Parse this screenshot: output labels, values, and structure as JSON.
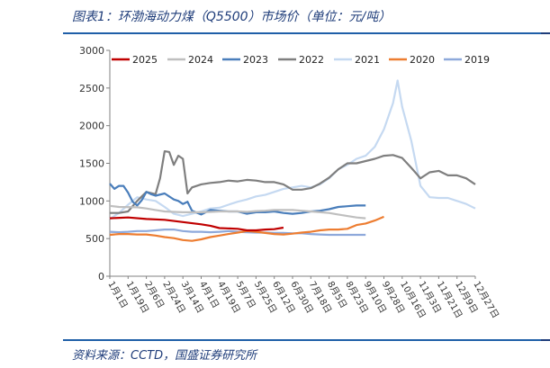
{
  "header": {
    "title": "图表1：环渤海动力煤（Q5500）市场价（单位：元/吨）"
  },
  "footer": {
    "source": "资料来源：CCTD，国盛证券研究所"
  },
  "chart_data": {
    "type": "line",
    "title": "",
    "xlabel": "",
    "ylabel": "",
    "ylim": [
      0,
      3000
    ],
    "yticks": [
      0,
      500,
      1000,
      1500,
      2000,
      2500,
      3000
    ],
    "grid": false,
    "legend_position": "top",
    "x_tick_labels": [
      "1月1日",
      "1月19日",
      "2月6日",
      "2月24日",
      "3月14日",
      "4月1日",
      "4月19日",
      "5月7日",
      "5月25日",
      "6月12日",
      "6月30日",
      "7月18日",
      "8月5日",
      "8月23日",
      "9月10日",
      "9月28日",
      "10月16日",
      "11月3日",
      "11月21日",
      "12月9日",
      "12月27日"
    ],
    "series": [
      {
        "name": "2025",
        "color": "#c00000",
        "points": [
          [
            0,
            770
          ],
          [
            2,
            780
          ],
          [
            4,
            760
          ],
          [
            6,
            750
          ],
          [
            8,
            720
          ],
          [
            10,
            690
          ],
          [
            11,
            670
          ],
          [
            12,
            640
          ],
          [
            14,
            630
          ],
          [
            15,
            610
          ],
          [
            16,
            610
          ],
          [
            17,
            620
          ],
          [
            18,
            625
          ],
          [
            19,
            645
          ]
        ]
      },
      {
        "name": "2024",
        "color": "#bfbfbf",
        "points": [
          [
            0,
            935
          ],
          [
            1,
            920
          ],
          [
            3,
            915
          ],
          [
            4,
            900
          ],
          [
            5,
            880
          ],
          [
            6,
            860
          ],
          [
            7,
            855
          ],
          [
            8,
            850
          ],
          [
            10,
            850
          ],
          [
            11,
            855
          ],
          [
            12,
            860
          ],
          [
            14,
            860
          ],
          [
            15,
            855
          ],
          [
            16,
            865
          ],
          [
            17,
            870
          ],
          [
            18,
            880
          ],
          [
            19,
            880
          ],
          [
            20,
            880
          ],
          [
            21,
            870
          ],
          [
            22,
            860
          ],
          [
            24,
            840
          ],
          [
            25,
            820
          ],
          [
            26,
            800
          ],
          [
            27,
            780
          ],
          [
            28,
            770
          ]
        ]
      },
      {
        "name": "2023",
        "color": "#4a7ebb",
        "points": [
          [
            0,
            1230
          ],
          [
            0.5,
            1160
          ],
          [
            1,
            1200
          ],
          [
            1.5,
            1200
          ],
          [
            2,
            1110
          ],
          [
            2.5,
            990
          ],
          [
            3,
            940
          ],
          [
            3.5,
            1010
          ],
          [
            4,
            1120
          ],
          [
            4.5,
            1090
          ],
          [
            5,
            1070
          ],
          [
            6,
            1100
          ],
          [
            7,
            1020
          ],
          [
            7.5,
            1000
          ],
          [
            8,
            960
          ],
          [
            8.5,
            990
          ],
          [
            9,
            870
          ],
          [
            10,
            820
          ],
          [
            11,
            880
          ],
          [
            12,
            870
          ],
          [
            13,
            860
          ],
          [
            14,
            860
          ],
          [
            15,
            830
          ],
          [
            16,
            850
          ],
          [
            17,
            850
          ],
          [
            18,
            860
          ],
          [
            19,
            840
          ],
          [
            20,
            830
          ],
          [
            21,
            840
          ],
          [
            22,
            860
          ],
          [
            23,
            870
          ],
          [
            24,
            890
          ],
          [
            25,
            920
          ],
          [
            26,
            930
          ],
          [
            27,
            940
          ],
          [
            28,
            940
          ]
        ]
      },
      {
        "name": "2022",
        "color": "#7f7f7f",
        "points": [
          [
            0,
            840
          ],
          [
            1,
            840
          ],
          [
            2,
            860
          ],
          [
            3,
            1000
          ],
          [
            4,
            1120
          ],
          [
            5,
            1090
          ],
          [
            5.5,
            1300
          ],
          [
            6,
            1660
          ],
          [
            6.5,
            1650
          ],
          [
            7,
            1480
          ],
          [
            7.5,
            1600
          ],
          [
            8,
            1560
          ],
          [
            8.5,
            1100
          ],
          [
            9,
            1180
          ],
          [
            10,
            1220
          ],
          [
            11,
            1240
          ],
          [
            12,
            1250
          ],
          [
            13,
            1270
          ],
          [
            14,
            1260
          ],
          [
            15,
            1280
          ],
          [
            16,
            1270
          ],
          [
            17,
            1250
          ],
          [
            18,
            1250
          ],
          [
            19,
            1220
          ],
          [
            20,
            1150
          ],
          [
            21,
            1150
          ],
          [
            22,
            1170
          ],
          [
            23,
            1230
          ],
          [
            24,
            1310
          ],
          [
            25,
            1420
          ],
          [
            26,
            1500
          ],
          [
            27,
            1500
          ],
          [
            28,
            1530
          ],
          [
            29,
            1560
          ],
          [
            30,
            1600
          ],
          [
            31,
            1610
          ],
          [
            32,
            1570
          ],
          [
            33,
            1440
          ],
          [
            34,
            1300
          ],
          [
            35,
            1380
          ],
          [
            36,
            1400
          ],
          [
            37,
            1340
          ],
          [
            38,
            1340
          ],
          [
            39,
            1300
          ],
          [
            40,
            1220
          ]
        ]
      },
      {
        "name": "2021",
        "color": "#c5d9f1",
        "points": [
          [
            0,
            760
          ],
          [
            1,
            840
          ],
          [
            2,
            950
          ],
          [
            3,
            1050
          ],
          [
            4,
            1020
          ],
          [
            5,
            1000
          ],
          [
            6,
            920
          ],
          [
            7,
            830
          ],
          [
            8,
            800
          ],
          [
            9,
            830
          ],
          [
            10,
            860
          ],
          [
            11,
            900
          ],
          [
            12,
            910
          ],
          [
            13,
            950
          ],
          [
            14,
            990
          ],
          [
            15,
            1020
          ],
          [
            16,
            1060
          ],
          [
            17,
            1080
          ],
          [
            18,
            1120
          ],
          [
            19,
            1160
          ],
          [
            20,
            1180
          ],
          [
            21,
            1200
          ],
          [
            22,
            1180
          ],
          [
            23,
            1220
          ],
          [
            24,
            1300
          ],
          [
            25,
            1420
          ],
          [
            26,
            1480
          ],
          [
            27,
            1560
          ],
          [
            28,
            1600
          ],
          [
            29,
            1720
          ],
          [
            30,
            1950
          ],
          [
            31,
            2300
          ],
          [
            31.5,
            2600
          ],
          [
            32,
            2250
          ],
          [
            33,
            1800
          ],
          [
            34,
            1200
          ],
          [
            35,
            1050
          ],
          [
            36,
            1040
          ],
          [
            37,
            1040
          ],
          [
            38,
            1000
          ],
          [
            39,
            960
          ],
          [
            40,
            900
          ]
        ]
      },
      {
        "name": "2020",
        "color": "#ed7d31",
        "points": [
          [
            0,
            550
          ],
          [
            1,
            560
          ],
          [
            2,
            560
          ],
          [
            3,
            555
          ],
          [
            4,
            555
          ],
          [
            5,
            540
          ],
          [
            6,
            520
          ],
          [
            7,
            505
          ],
          [
            8,
            480
          ],
          [
            9,
            470
          ],
          [
            10,
            490
          ],
          [
            11,
            520
          ],
          [
            12,
            540
          ],
          [
            13,
            560
          ],
          [
            14,
            580
          ],
          [
            15,
            600
          ],
          [
            16,
            590
          ],
          [
            17,
            575
          ],
          [
            18,
            560
          ],
          [
            19,
            555
          ],
          [
            20,
            565
          ],
          [
            21,
            580
          ],
          [
            22,
            590
          ],
          [
            23,
            610
          ],
          [
            24,
            620
          ],
          [
            25,
            620
          ],
          [
            26,
            630
          ],
          [
            27,
            680
          ],
          [
            28,
            700
          ],
          [
            29,
            740
          ],
          [
            30,
            790
          ]
        ]
      },
      {
        "name": "2019",
        "color": "#8ea9db",
        "points": [
          [
            0,
            590
          ],
          [
            1,
            585
          ],
          [
            2,
            590
          ],
          [
            3,
            600
          ],
          [
            4,
            600
          ],
          [
            5,
            610
          ],
          [
            6,
            620
          ],
          [
            7,
            620
          ],
          [
            8,
            600
          ],
          [
            9,
            590
          ],
          [
            10,
            590
          ],
          [
            11,
            585
          ],
          [
            12,
            590
          ],
          [
            13,
            600
          ],
          [
            14,
            590
          ],
          [
            15,
            585
          ],
          [
            16,
            580
          ],
          [
            17,
            580
          ],
          [
            18,
            575
          ],
          [
            19,
            575
          ],
          [
            20,
            570
          ],
          [
            21,
            570
          ],
          [
            22,
            560
          ],
          [
            23,
            555
          ],
          [
            24,
            550
          ],
          [
            25,
            550
          ],
          [
            26,
            550
          ],
          [
            27,
            550
          ],
          [
            28,
            550
          ]
        ]
      }
    ]
  }
}
